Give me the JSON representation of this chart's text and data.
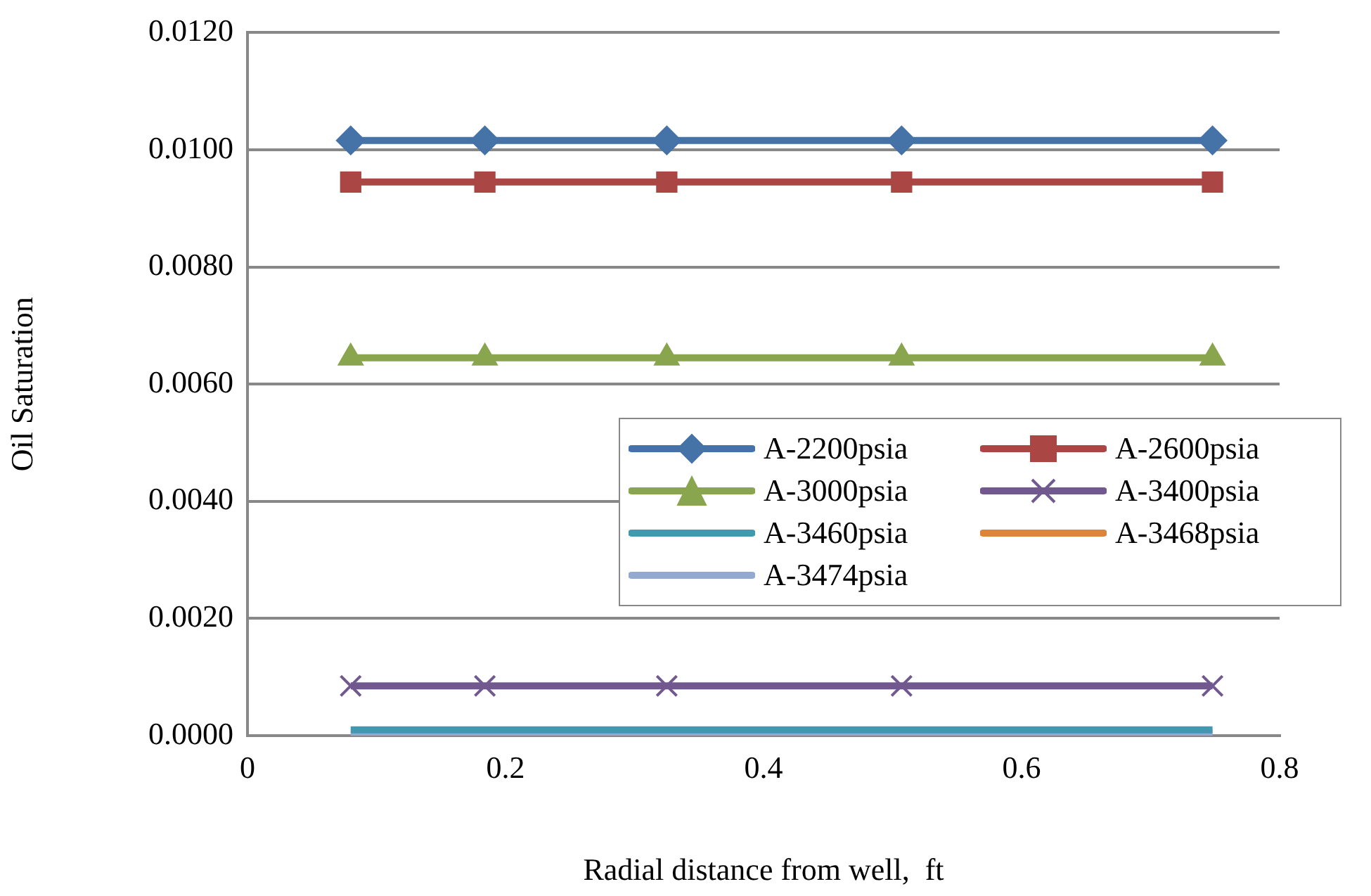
{
  "chart_data": {
    "type": "line",
    "xlabel": "Radial distance from well,  ft",
    "ylabel": "Oil Saturation",
    "x": [
      0.08,
      0.184,
      0.325,
      0.507,
      0.748
    ],
    "xlim": [
      0,
      0.8
    ],
    "xticks": [
      0,
      0.2,
      0.4,
      0.6,
      0.8
    ],
    "ylim": [
      0,
      0.012
    ],
    "yticks": [
      {
        "value": 0,
        "label": "0.0000"
      },
      {
        "value": 0.002,
        "label": "0.0020"
      },
      {
        "value": 0.004,
        "label": "0.0040"
      },
      {
        "value": 0.006,
        "label": "0.0060"
      },
      {
        "value": 0.008,
        "label": "0.0080"
      },
      {
        "value": 0.01,
        "label": "0.0100"
      },
      {
        "value": 0.012,
        "label": "0.0120"
      }
    ],
    "grid": "y",
    "legend": "right",
    "series": [
      {
        "name": "A-2200psia",
        "color": "#4572a7",
        "marker": "diamond",
        "values": [
          0.01016,
          0.01016,
          0.01016,
          0.01016,
          0.01016
        ]
      },
      {
        "name": "A-2600psia",
        "color": "#aa4643",
        "marker": "square",
        "values": [
          0.00945,
          0.00945,
          0.00945,
          0.00945,
          0.00945
        ]
      },
      {
        "name": "A-3000psia",
        "color": "#89a54e",
        "marker": "triangle",
        "values": [
          0.00645,
          0.00645,
          0.00645,
          0.00645,
          0.00645
        ]
      },
      {
        "name": "A-3400psia",
        "color": "#71588f",
        "marker": "cross",
        "values": [
          0.00085,
          0.00085,
          0.00085,
          0.00085,
          0.00085
        ]
      },
      {
        "name": "A-3460psia",
        "color": "#4198af",
        "marker": "none",
        "values": [
          0.0001,
          0.0001,
          0.0001,
          0.0001,
          0.0001
        ]
      },
      {
        "name": "A-3468psia",
        "color": "#db843d",
        "marker": "none",
        "values": [
          null,
          null,
          null,
          null,
          null
        ]
      },
      {
        "name": "A-3474psia",
        "color": "#93a9cf",
        "marker": "none",
        "values": [
          5e-05,
          5e-05,
          5e-05,
          5e-05,
          5e-05
        ]
      }
    ]
  }
}
